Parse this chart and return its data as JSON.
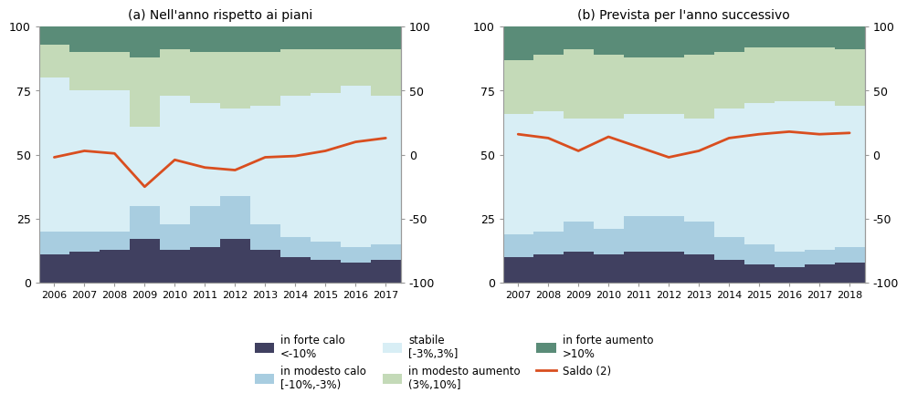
{
  "panel_a": {
    "title": "(a) Nell'anno rispetto ai piani",
    "years": [
      2006,
      2007,
      2008,
      2009,
      2010,
      2011,
      2012,
      2013,
      2014,
      2015,
      2016,
      2017
    ],
    "forte_calo": [
      11,
      12,
      13,
      17,
      13,
      14,
      17,
      13,
      10,
      9,
      8,
      9
    ],
    "modesto_calo": [
      9,
      8,
      7,
      13,
      10,
      16,
      17,
      10,
      8,
      7,
      6,
      6
    ],
    "stabile": [
      60,
      55,
      55,
      31,
      50,
      40,
      34,
      46,
      55,
      58,
      63,
      58
    ],
    "modesto_aumento": [
      13,
      15,
      15,
      27,
      18,
      20,
      22,
      21,
      18,
      17,
      14,
      18
    ],
    "forte_aumento": [
      7,
      10,
      10,
      12,
      9,
      10,
      10,
      10,
      9,
      9,
      9,
      9
    ],
    "saldo": [
      -2,
      3,
      1,
      -25,
      -4,
      -10,
      -12,
      -2,
      -1,
      3,
      10,
      13
    ]
  },
  "panel_b": {
    "title": "(b) Prevista per l'anno successivo",
    "years": [
      2007,
      2008,
      2009,
      2010,
      2011,
      2012,
      2013,
      2014,
      2015,
      2016,
      2017,
      2018
    ],
    "forte_calo": [
      10,
      11,
      12,
      11,
      12,
      12,
      11,
      9,
      7,
      6,
      7,
      8
    ],
    "modesto_calo": [
      9,
      9,
      12,
      10,
      14,
      14,
      13,
      9,
      8,
      6,
      6,
      6
    ],
    "stabile": [
      47,
      47,
      40,
      43,
      40,
      40,
      40,
      50,
      55,
      59,
      58,
      55
    ],
    "modesto_aumento": [
      21,
      22,
      27,
      25,
      22,
      22,
      25,
      22,
      22,
      21,
      21,
      22
    ],
    "forte_aumento": [
      13,
      11,
      9,
      11,
      12,
      12,
      11,
      10,
      8,
      8,
      8,
      9
    ],
    "saldo": [
      16,
      13,
      3,
      14,
      6,
      -2,
      3,
      13,
      16,
      18,
      16,
      17
    ]
  },
  "colors": {
    "forte_calo": "#404060",
    "modesto_calo": "#a8cde0",
    "stabile": "#d8eef5",
    "modesto_aumento": "#c4dab8",
    "forte_aumento": "#5a8c78",
    "saldo_line": "#d94e1f"
  },
  "legend": {
    "forte_calo_label": "in forte calo\n<-10%",
    "modesto_calo_label": "in modesto calo\n[-10%,-3%)",
    "stabile_label": "stabile\n[-3%,3%]",
    "modesto_aumento_label": "in modesto aumento\n(3%,10%]",
    "forte_aumento_label": "in forte aumento\n>10%",
    "saldo_label": "Saldo (2)"
  }
}
